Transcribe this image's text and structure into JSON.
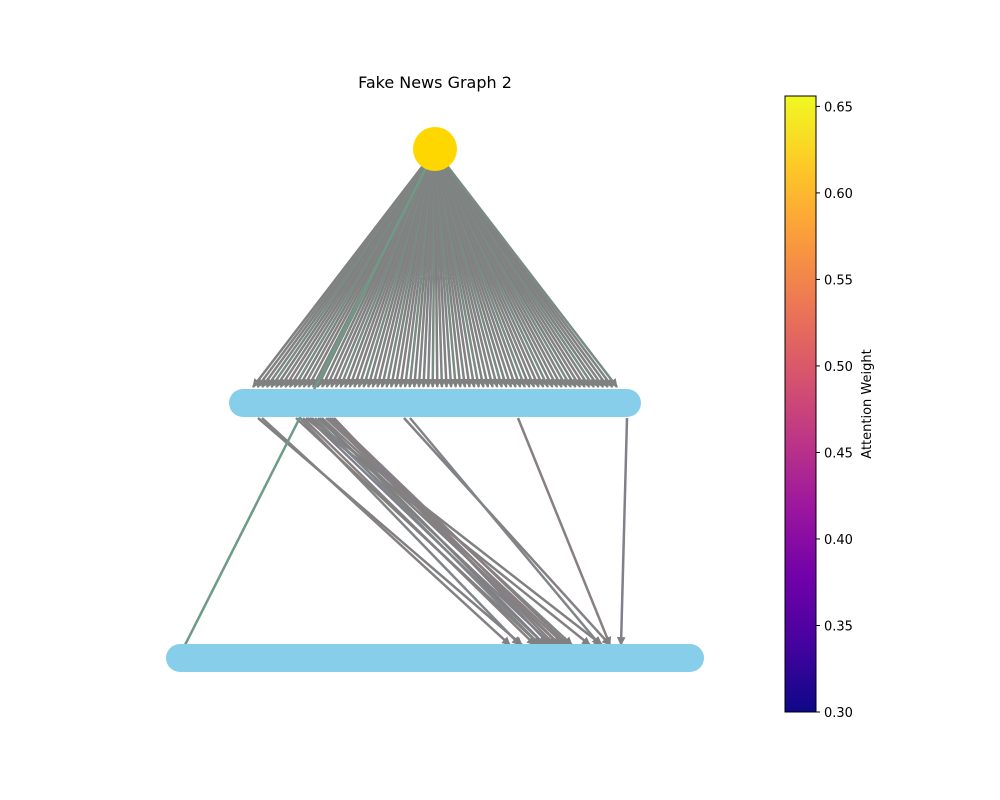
{
  "title": "Fake News Graph 2",
  "colorbar": {
    "label": "Attention Weight",
    "min": 0.3,
    "max": 0.656,
    "ticks": [
      "0.30",
      "0.35",
      "0.40",
      "0.45",
      "0.50",
      "0.55",
      "0.60",
      "0.65"
    ],
    "tick_values": [
      0.3,
      0.35,
      0.4,
      0.45,
      0.5,
      0.55,
      0.6,
      0.65
    ],
    "colormap": "plasma",
    "stops": [
      "#0d0887",
      "#46039f",
      "#7201a8",
      "#9c179e",
      "#bd3786",
      "#d8576b",
      "#ed7953",
      "#fb9f3a",
      "#fdca26",
      "#f0f921"
    ]
  },
  "graph": {
    "root_color": "#ffd700",
    "node_color": "#87ceeb",
    "edge_color": "#808080",
    "root_fanout_edges": 80,
    "level1_to_level2_edges": 22
  }
}
